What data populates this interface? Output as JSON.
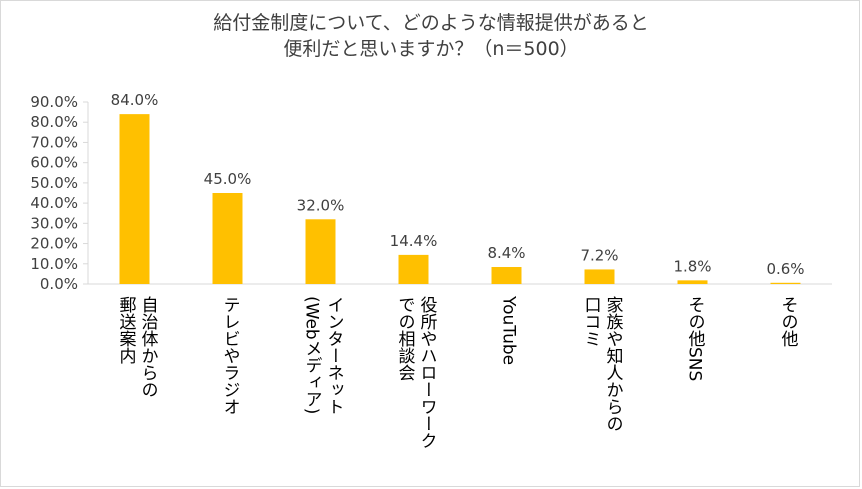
{
  "chart_data": {
    "type": "bar",
    "title": [
      "給付金制度について、どのような情報提供があると",
      "便利だと思いますか？（n＝500）"
    ],
    "categories": [
      [
        "自治体からの",
        "郵送案内"
      ],
      [
        "テレビやラジオ"
      ],
      [
        "インターネット",
        "(Webメディア)"
      ],
      [
        "役所やハローワーク",
        "での相談会"
      ],
      [
        "YouTube"
      ],
      [
        "家族や知人からの",
        "口コミ"
      ],
      [
        "その他SNS"
      ],
      [
        "その他"
      ]
    ],
    "values": [
      84.0,
      45.0,
      32.0,
      14.4,
      8.4,
      7.2,
      1.8,
      0.6
    ],
    "value_labels": [
      "84.0%",
      "45.0%",
      "32.0%",
      "14.4%",
      "8.4%",
      "7.2%",
      "1.8%",
      "0.6%"
    ],
    "yticks": [
      0,
      10,
      20,
      30,
      40,
      50,
      60,
      70,
      80,
      90
    ],
    "ytick_labels": [
      "0.0%",
      "10.0%",
      "20.0%",
      "30.0%",
      "40.0%",
      "50.0%",
      "60.0%",
      "70.0%",
      "80.0%",
      "90.0%"
    ],
    "ylim": [
      0,
      90
    ],
    "xlabel": "",
    "ylabel": "",
    "grid": false,
    "legend": "none",
    "bar_color": "#ffc000",
    "axis_color": "#d9d9d9"
  }
}
